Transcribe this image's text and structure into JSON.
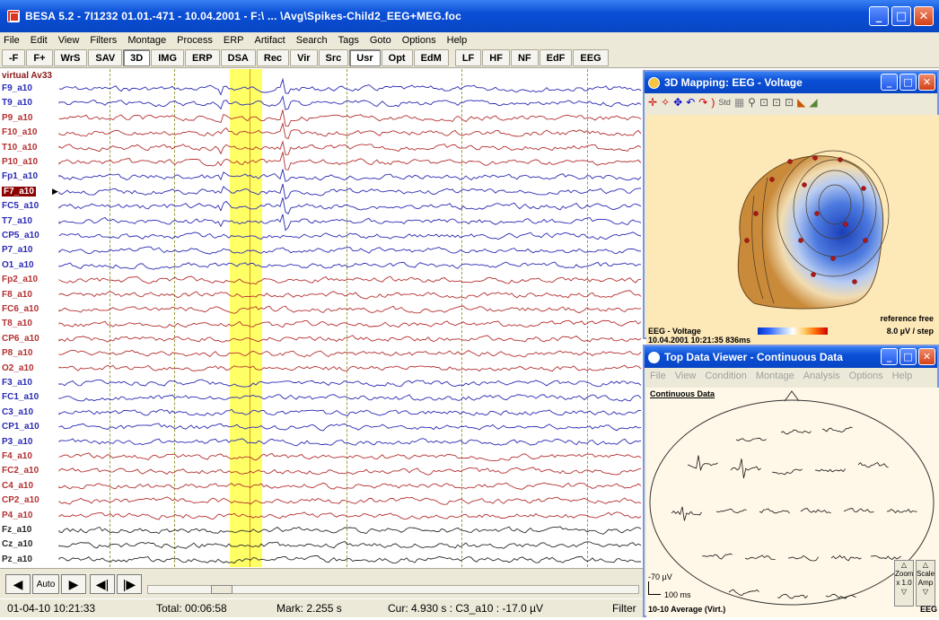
{
  "window": {
    "title": "BESA 5.2 - 7I1232 01.01.-471 - 10.04.2001 - F:\\ ... \\Avg\\Spikes-Child2_EEG+MEG.foc"
  },
  "menu": [
    "File",
    "Edit",
    "View",
    "Filters",
    "Montage",
    "Process",
    "ERP",
    "Artifact",
    "Search",
    "Tags",
    "Goto",
    "Options",
    "Help"
  ],
  "toolbar": [
    "-F",
    "F+",
    "WrS",
    "SAV",
    "3D",
    "IMG",
    "ERP",
    "DSA",
    "Rec",
    "Vir",
    "Src",
    "Usr",
    "Opt",
    "EdM",
    "LF",
    "HF",
    "NF",
    "EdF",
    "EEG"
  ],
  "toolbar_active": [
    "3D",
    "Usr"
  ],
  "eeg": {
    "header": "virtual Av33",
    "channels": [
      "F9_a10",
      "T9_a10",
      "P9_a10",
      "F10_a10",
      "T10_a10",
      "P10_a10",
      "Fp1_a10",
      "F7_a10",
      "FC5_a10",
      "T7_a10",
      "CP5_a10",
      "P7_a10",
      "O1_a10",
      "Fp2_a10",
      "F8_a10",
      "FC6_a10",
      "T8_a10",
      "CP6_a10",
      "P8_a10",
      "O2_a10",
      "F3_a10",
      "FC1_a10",
      "C3_a10",
      "CP1_a10",
      "P3_a10",
      "F4_a10",
      "FC2_a10",
      "C4_a10",
      "CP2_a10",
      "P4_a10",
      "Fz_a10",
      "Cz_a10",
      "Pz_a10"
    ],
    "channel_colors": [
      "#2b2bb5",
      "#2b2bb5",
      "#b53030",
      "#b53030",
      "#b53030",
      "#b53030",
      "#2b2bb5",
      "#2b2bb5",
      "#2b2bb5",
      "#2b2bb5",
      "#2b2bb5",
      "#2b2bb5",
      "#2b2bb5",
      "#b53030",
      "#b53030",
      "#b53030",
      "#b53030",
      "#b53030",
      "#b53030",
      "#b53030",
      "#2b2bb5",
      "#2b2bb5",
      "#2b2bb5",
      "#2b2bb5",
      "#2b2bb5",
      "#b53030",
      "#b53030",
      "#b53030",
      "#b53030",
      "#b53030",
      "#2a2a2a",
      "#2a2a2a",
      "#2a2a2a"
    ],
    "selected_channel": "F7_a10",
    "highlight_color": "#ffff66"
  },
  "nav": {
    "auto_label": "Auto"
  },
  "status": {
    "date": "01-04-10 10:21:33",
    "total": "Total: 00:06:58",
    "mark": "Mark: 2.255 s",
    "cur": "Cur: 4.930 s : C3_a10 : -17.0 µV",
    "filter": "Filter"
  },
  "mapping": {
    "title": "3D Mapping: EEG - Voltage",
    "timestamp": "10.04.2001 10:21:35 836ms",
    "reference": "reference free",
    "type": "EEG - Voltage",
    "scale": "8.0 µV / step"
  },
  "viewer": {
    "title": "Top Data Viewer - Continuous Data",
    "menu": [
      "File",
      "View",
      "Condition",
      "Montage",
      "Analysis",
      "Options",
      "Help"
    ],
    "label": "Continuous Data",
    "amp": "-70 µV",
    "time": "100 ms",
    "montage": "10-10 Average (Virt.)",
    "zoom": [
      "Zoom",
      "x 1.0"
    ],
    "scale": [
      "Scale",
      "Amp"
    ],
    "eeg_tag": "EEG"
  }
}
